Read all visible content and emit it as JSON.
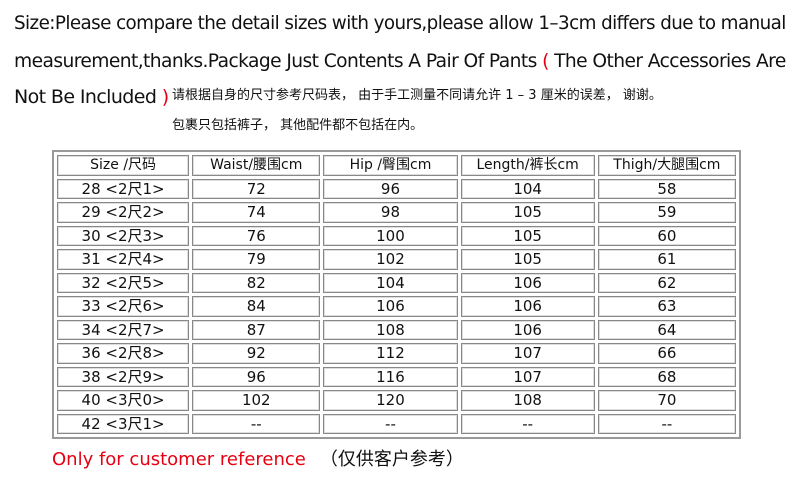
{
  "intro": {
    "line1": "Size:Please compare the detail sizes with yours,please allow 1–3cm differs due to manual",
    "line2_a": "measurement,thanks.Package Just Contents A Pair Of Pants",
    "paren_open": "(",
    "line2_b": " The Other Accessories Are",
    "line3": "Not Be Included",
    "paren_close": ")",
    "cn_line1": "请根据自身的尺寸参考尺码表， 由于手工测量不同请允许 1 – 3 厘米的误差， 谢谢。",
    "cn_line2": "包裹只包括裤子， 其他配件都不包括在内。"
  },
  "table": {
    "headers": [
      "Size /尺码",
      "Waist/腰围cm",
      "Hip /臀围cm",
      "Length/裤长cm",
      "Thigh/大腿围cm"
    ],
    "rows": [
      [
        "28 <2尺1>",
        "72",
        "96",
        "104",
        "58"
      ],
      [
        "29 <2尺2>",
        "74",
        "98",
        "105",
        "59"
      ],
      [
        "30 <2尺3>",
        "76",
        "100",
        "105",
        "60"
      ],
      [
        "31 <2尺4>",
        "79",
        "102",
        "105",
        "61"
      ],
      [
        "32 <2尺5>",
        "82",
        "104",
        "106",
        "62"
      ],
      [
        "33 <2尺6>",
        "84",
        "106",
        "106",
        "63"
      ],
      [
        "34 <2尺7>",
        "87",
        "108",
        "106",
        "64"
      ],
      [
        "36 <2尺8>",
        "92",
        "112",
        "107",
        "66"
      ],
      [
        "38 <2尺9>",
        "96",
        "116",
        "107",
        "68"
      ],
      [
        "40 <3尺0>",
        "102",
        "120",
        "108",
        "70"
      ],
      [
        "42 <3尺1>",
        "--",
        "--",
        "--",
        "--"
      ]
    ]
  },
  "footer": {
    "en": "Only for customer reference",
    "cn": "（仅供客户参考）"
  },
  "colors": {
    "accent_red": "#e60012"
  }
}
